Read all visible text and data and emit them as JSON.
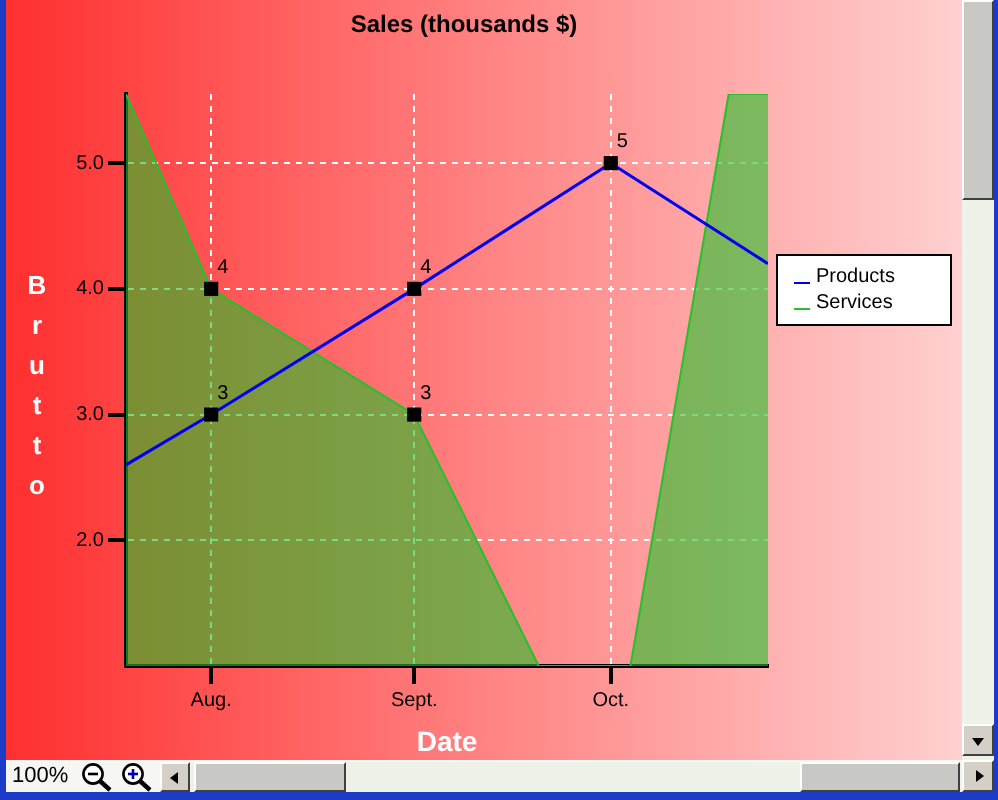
{
  "chart_data": {
    "type": "line",
    "title": "Sales (thousands $)",
    "xlabel": "Date",
    "ylabel": "Brutto",
    "annotations": [
      "100%"
    ],
    "xlim": [
      "--07-19",
      "--10-25"
    ],
    "xticks": [
      {
        "value": "--08-01",
        "label": "Aug."
      },
      {
        "value": "--09-01",
        "label": "Sept."
      },
      {
        "value": "--10-01",
        "label": "Oct."
      }
    ],
    "ylim": [
      1,
      5.55
    ],
    "yticks": [
      {
        "value": 2,
        "label": "2.0"
      },
      {
        "value": 3,
        "label": "3.0"
      },
      {
        "value": 4,
        "label": "4.0"
      },
      {
        "value": 5,
        "label": "5.0"
      }
    ],
    "grid": true,
    "legend": "right",
    "series": [
      {
        "name": "Products",
        "type": "line",
        "color": "#0000ee",
        "x": [
          "--07-19",
          "--08-01",
          "--09-01",
          "--10-01",
          "--10-25"
        ],
        "values": [
          2.6,
          3,
          4,
          5,
          4.2
        ]
      },
      {
        "name": "Services",
        "type": "area",
        "color": "#25c02a",
        "x": [
          "--07-19",
          "--08-01",
          "--09-01",
          "--09-20",
          "--10-04",
          "--10-19",
          "--10-25"
        ],
        "values": [
          5.55,
          4,
          3,
          1,
          1,
          5.55,
          5.55
        ]
      },
      {
        "type": "scatter",
        "color": "#000000",
        "marker": "square",
        "x": [
          "--08-01",
          "--09-01",
          "--10-01",
          "--08-01",
          "--09-01"
        ],
        "values": [
          3,
          4,
          5,
          4,
          3
        ],
        "value_labels": [
          "3",
          "4",
          "5",
          "4",
          "3"
        ]
      }
    ]
  }
}
